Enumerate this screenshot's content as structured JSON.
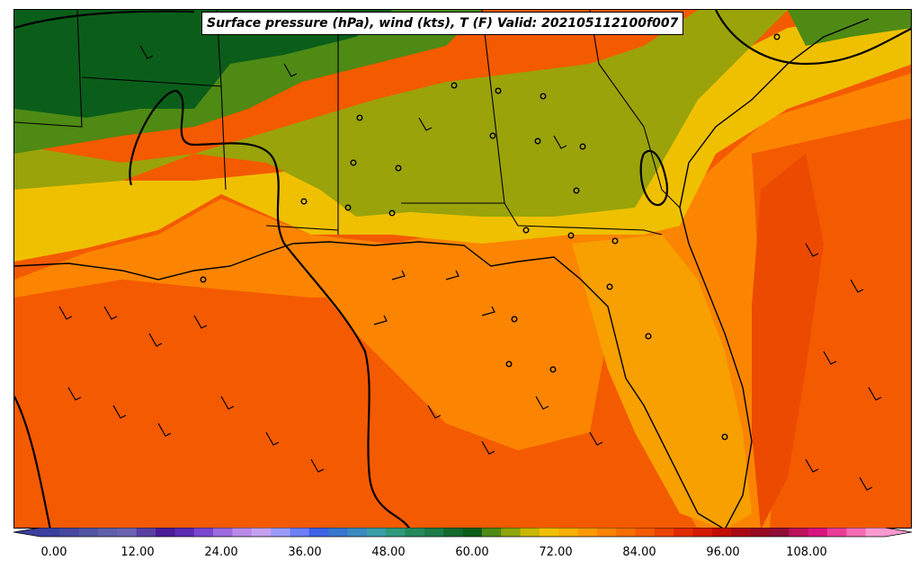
{
  "title": "Surface pressure (hPa), wind (kts), T (F) Valid: 202105112100f007",
  "colorbar": {
    "tick_labels": [
      "0.00",
      "12.00",
      "24.00",
      "36.00",
      "48.00",
      "60.00",
      "72.00",
      "84.00",
      "96.00",
      "108.00"
    ],
    "colors": [
      "#3b3f9e",
      "#46479f",
      "#5154a4",
      "#5e5fa9",
      "#6a63b0",
      "#5a3fa3",
      "#4b1c98",
      "#5b2bb0",
      "#7a46d0",
      "#9b6ae0",
      "#b98ae8",
      "#c4a0f0",
      "#9a9cf8",
      "#6c7ef6",
      "#3d62e6",
      "#3576cf",
      "#3a8ac0",
      "#3a9ea8",
      "#2f9a7a",
      "#23895c",
      "#1c7c47",
      "#136a2e",
      "#0b5e1a",
      "#4e8a14",
      "#8ea50c",
      "#c9b700",
      "#f0c000",
      "#f7b000",
      "#fb9a00",
      "#fb8500",
      "#f86e00",
      "#f45a00",
      "#ec4300",
      "#e02a00",
      "#d21a00",
      "#c00e00",
      "#a80812",
      "#960a22",
      "#8e0c36",
      "#b8125a",
      "#d8147e",
      "#ea3c98",
      "#f46cb2",
      "#fb9ad0"
    ]
  },
  "legend_colors": {
    "greens": "#0b5e1a",
    "olive": "#9aa30a",
    "gold": "#efc000",
    "orange": "#fb8500",
    "deep_orange": "#f45a00",
    "red_orange": "#e84300"
  }
}
